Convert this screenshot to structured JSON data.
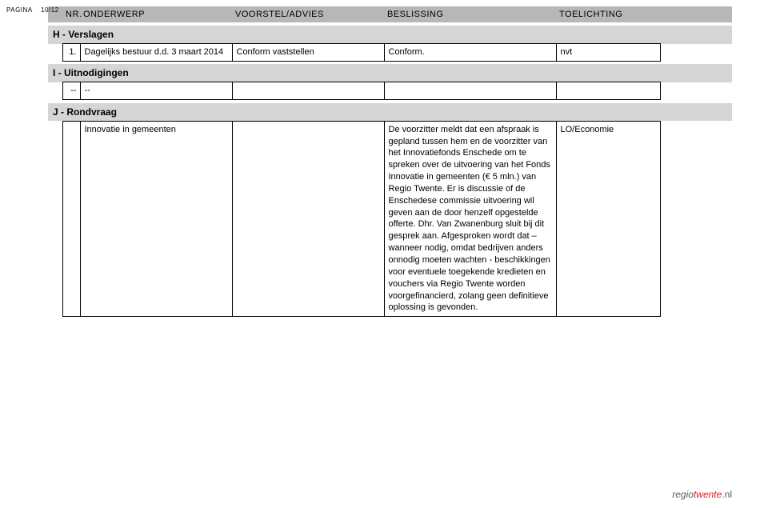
{
  "page": {
    "label": "PAGINA",
    "number": "10/12"
  },
  "headers": {
    "nr": "NR.",
    "subject": "ONDERWERP",
    "advice": "VOORSTEL/ADVIES",
    "decision": "BESLISSING",
    "explain": "TOELICHTING"
  },
  "sections": {
    "h": {
      "title": "H - Verslagen"
    },
    "i": {
      "title": "I - Uitnodigingen"
    },
    "j": {
      "title": "J - Rondvraag"
    }
  },
  "rows": {
    "h1": {
      "num": "1.",
      "subject": "Dagelijks bestuur d.d. 3 maart 2014",
      "advice": "Conform vaststellen",
      "decision": "Conform.",
      "explain": "nvt"
    },
    "i1": {
      "num": "--",
      "subject": "--",
      "advice": "",
      "decision": "",
      "explain": ""
    },
    "j1": {
      "num": "",
      "subject": "Innovatie in gemeenten",
      "advice": "",
      "decision": "De voorzitter meldt dat een afspraak is gepland tussen hem en de voorzitter van het Innovatiefonds Enschede om te spreken over de uitvoering van het Fonds Innovatie in gemeenten (€ 5 mln.) van Regio Twente. Er is discussie of de Enschedese commissie uitvoering wil geven aan de door henzelf opgestelde offerte. Dhr. Van Zwanenburg sluit bij dit gesprek aan. Afgesproken wordt dat – wanneer nodig, omdat bedrijven anders onnodig moeten wachten - beschikkingen voor eventuele toegekende kredieten en vouchers via Regio Twente worden voorgefinancierd, zolang geen definitieve oplossing is gevonden.",
      "explain": "LO/Economie"
    }
  },
  "footer": {
    "a": "regio",
    "b": "twente",
    "c": ".nl"
  },
  "colors": {
    "header_bg": "#b8b6b7",
    "section_bg": "#d6d4d5",
    "border": "#000000",
    "brand_gray": "#5a5a5a",
    "brand_red": "#e11b22"
  }
}
